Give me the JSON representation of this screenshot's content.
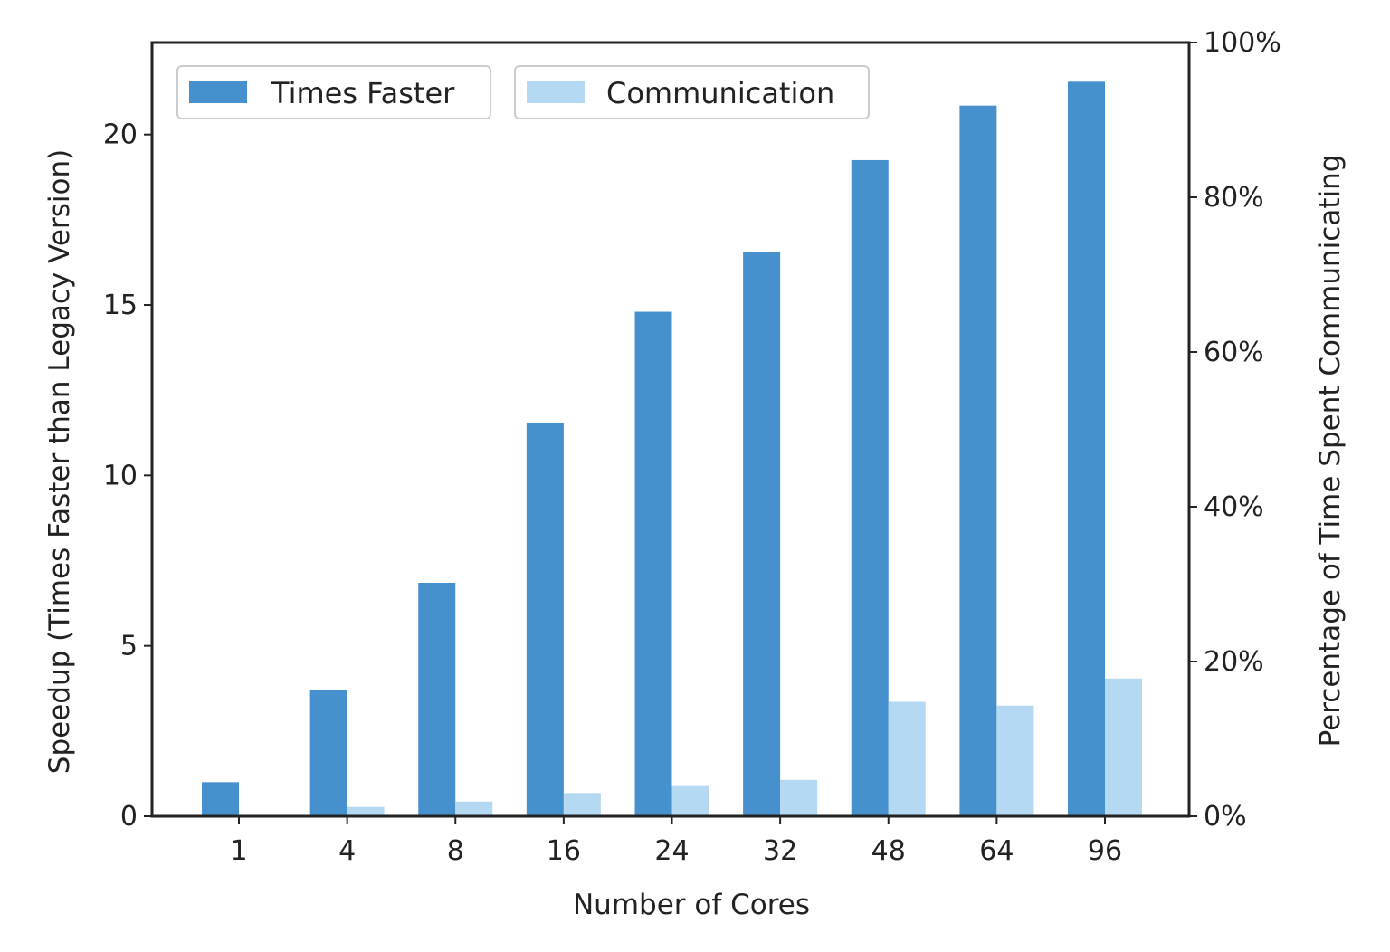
{
  "chart_data": {
    "type": "bar",
    "categories": [
      "1",
      "4",
      "8",
      "16",
      "24",
      "32",
      "48",
      "64",
      "96"
    ],
    "series": [
      {
        "name": "Times Faster",
        "axis": "left",
        "color": "#4590cd",
        "values": [
          1.0,
          3.7,
          6.85,
          11.55,
          14.8,
          16.55,
          19.25,
          20.85,
          21.55
        ]
      },
      {
        "name": "Communication",
        "axis": "right",
        "color": "#b5d9f2",
        "values": [
          0,
          1.2,
          1.9,
          3.0,
          3.9,
          4.7,
          14.8,
          14.3,
          17.8
        ]
      }
    ],
    "xlabel": "Number of Cores",
    "ylabel": "Speedup (Times Faster than Legacy Version)",
    "y2label": "Percentage of Time Spent Communicating",
    "ylim": [
      0,
      22.7
    ],
    "y2lim": [
      0,
      100
    ],
    "yticks": [
      "0",
      "5",
      "10",
      "15",
      "20"
    ],
    "y2ticks": [
      "0%",
      "20%",
      "40%",
      "60%",
      "80%",
      "100%"
    ],
    "grid": false,
    "legend_position": "top-left"
  }
}
